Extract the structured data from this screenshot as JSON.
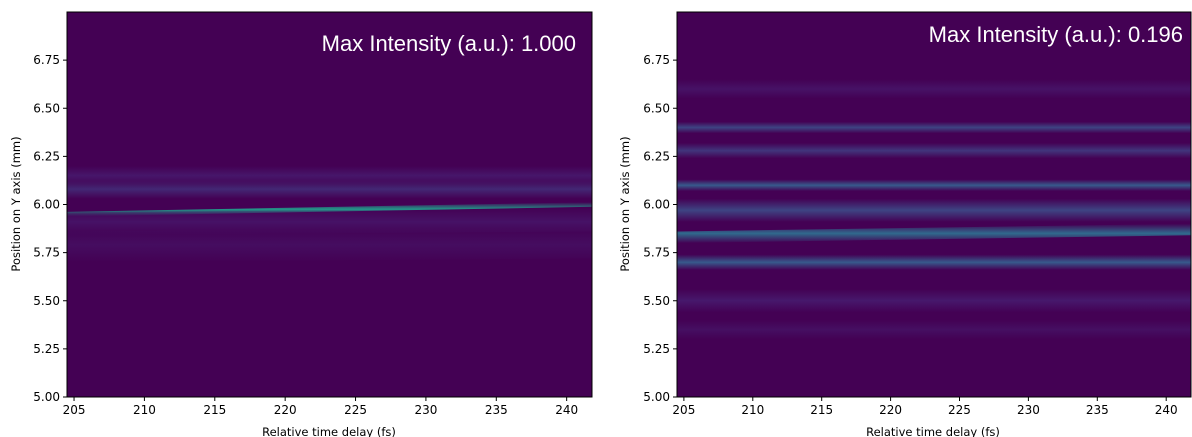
{
  "chart_data": [
    {
      "type": "heatmap",
      "annotation": "Max Intensity (a.u.): 1.000",
      "xlabel": "Relative time delay (fs)",
      "ylabel": "Position on Y axis (mm)",
      "xlim": [
        204.5,
        241.8
      ],
      "ylim": [
        5.0,
        7.0
      ],
      "xticks": [
        "205",
        "210",
        "215",
        "220",
        "225",
        "230",
        "235",
        "240"
      ],
      "yticks": [
        "5.00",
        "5.25",
        "5.50",
        "5.75",
        "6.00",
        "6.25",
        "6.50",
        "6.75"
      ],
      "colormap": [
        "#440154",
        "#46186c",
        "#3b528b",
        "#2c728e",
        "#21918c",
        "#27ad81"
      ],
      "max_intensity": 1.0,
      "bands": [
        {
          "y_start": 5.95,
          "y_end": 6.0,
          "slope_mm_per_fs": 0.0018,
          "intensity": 0.85,
          "width": 0.012
        },
        {
          "y_start": 6.08,
          "y_end": 6.08,
          "slope_mm_per_fs": 0.0,
          "intensity": 0.25,
          "width": 0.05
        },
        {
          "y_start": 6.15,
          "y_end": 6.15,
          "slope_mm_per_fs": 0.0,
          "intensity": 0.18,
          "width": 0.05
        },
        {
          "y_start": 5.9,
          "y_end": 5.92,
          "slope_mm_per_fs": 0.0,
          "intensity": 0.15,
          "width": 0.06
        },
        {
          "y_start": 5.78,
          "y_end": 5.8,
          "slope_mm_per_fs": 0.0,
          "intensity": 0.1,
          "width": 0.08
        }
      ]
    },
    {
      "type": "heatmap",
      "annotation": "Max Intensity (a.u.): 0.196",
      "xlabel": "Relative time delay (fs)",
      "ylabel": "Position on Y axis (mm)",
      "xlim": [
        204.5,
        241.8
      ],
      "ylim": [
        5.0,
        7.0
      ],
      "xticks": [
        "205",
        "210",
        "215",
        "220",
        "225",
        "230",
        "235",
        "240"
      ],
      "yticks": [
        "5.00",
        "5.25",
        "5.50",
        "5.75",
        "6.00",
        "6.25",
        "6.50",
        "6.75"
      ],
      "colormap": [
        "#440154",
        "#46186c",
        "#3b528b",
        "#2c728e",
        "#21918c",
        "#27ad81"
      ],
      "max_intensity": 0.196,
      "bands": [
        {
          "y_start": 5.83,
          "y_end": 5.87,
          "slope_mm_per_fs": 0.0,
          "intensity": 0.55,
          "width": 0.03
        },
        {
          "y_start": 6.1,
          "y_end": 6.1,
          "slope_mm_per_fs": 0.0,
          "intensity": 0.45,
          "width": 0.03
        },
        {
          "y_start": 6.4,
          "y_end": 6.4,
          "slope_mm_per_fs": 0.0,
          "intensity": 0.35,
          "width": 0.03
        },
        {
          "y_start": 5.7,
          "y_end": 5.7,
          "slope_mm_per_fs": 0.0,
          "intensity": 0.45,
          "width": 0.04
        },
        {
          "y_start": 5.97,
          "y_end": 5.97,
          "slope_mm_per_fs": 0.0,
          "intensity": 0.35,
          "width": 0.06
        },
        {
          "y_start": 6.28,
          "y_end": 6.28,
          "slope_mm_per_fs": 0.0,
          "intensity": 0.3,
          "width": 0.04
        },
        {
          "y_start": 6.6,
          "y_end": 6.6,
          "slope_mm_per_fs": 0.0,
          "intensity": 0.15,
          "width": 0.05
        },
        {
          "y_start": 5.5,
          "y_end": 5.5,
          "slope_mm_per_fs": 0.0,
          "intensity": 0.2,
          "width": 0.06
        },
        {
          "y_start": 5.35,
          "y_end": 5.35,
          "slope_mm_per_fs": 0.0,
          "intensity": 0.12,
          "width": 0.05
        }
      ]
    }
  ]
}
